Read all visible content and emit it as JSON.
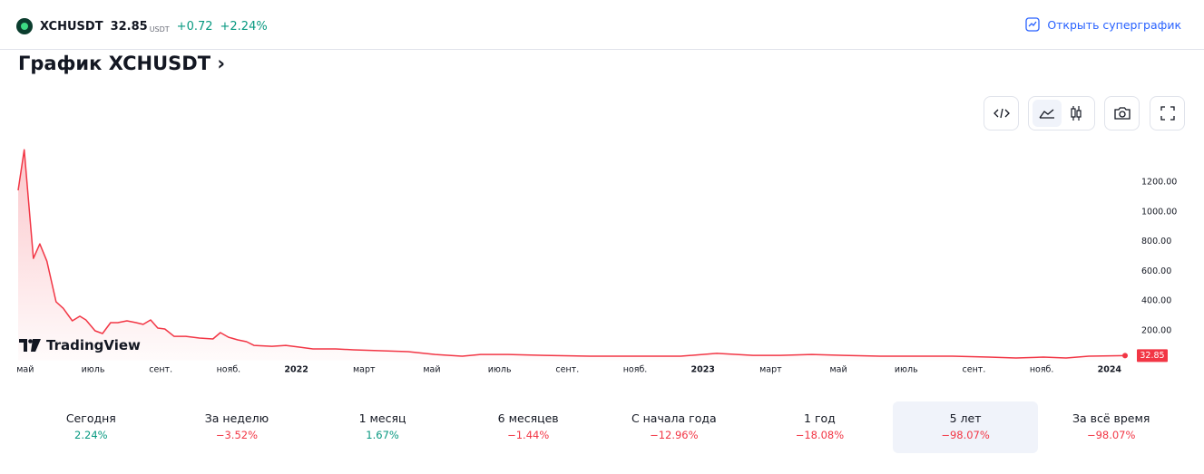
{
  "header": {
    "symbol": "XCHUSDT",
    "price": "32.85",
    "currency": "USDT",
    "change": "+0.72",
    "change_percent": "+2.24%",
    "superchart_button": "Открыть суперграфик"
  },
  "title": "График XCHUSDT",
  "watermark": "TradingView",
  "chart_data": {
    "type": "area",
    "color": "#f23645",
    "x": [
      -0.21,
      -0.03,
      0.24,
      0.43,
      0.64,
      0.91,
      1.12,
      1.39,
      1.61,
      1.79,
      2.06,
      2.28,
      2.52,
      2.73,
      3.0,
      3.27,
      3.48,
      3.7,
      3.91,
      4.12,
      4.39,
      4.74,
      5.14,
      5.54,
      5.76,
      6.0,
      6.27,
      6.53,
      6.75,
      7.28,
      7.69,
      8.09,
      8.49,
      9.16,
      9.69,
      10.5,
      11.3,
      12.1,
      12.9,
      13.44,
      14.25,
      15.32,
      16.66,
      18.0,
      19.34,
      20.41,
      21.48,
      22.28,
      23.22,
      24.16,
      25.23,
      26.3,
      27.37,
      28.44,
      29.24,
      30.05,
      30.72,
      31.39,
      32.46
    ],
    "values": [
      1145,
      1418,
      687,
      785,
      668,
      395,
      351,
      267,
      298,
      273,
      200,
      182,
      255,
      255,
      267,
      255,
      243,
      273,
      218,
      212,
      163,
      163,
      151,
      145,
      188,
      157,
      139,
      127,
      102,
      96,
      102,
      90,
      78,
      78,
      72,
      66,
      60,
      41,
      29,
      41,
      41,
      35,
      29,
      29,
      29,
      48,
      35,
      35,
      41,
      35,
      29,
      29,
      29,
      23,
      17,
      23,
      17,
      29,
      32.85
    ],
    "xlim": [
      -0.21,
      32.46
    ],
    "xticks": [
      {
        "value": 0,
        "label": "май"
      },
      {
        "value": 2,
        "label": "июль"
      },
      {
        "value": 4,
        "label": "сент."
      },
      {
        "value": 6,
        "label": "нояб."
      },
      {
        "value": 8,
        "label": "2022"
      },
      {
        "value": 10,
        "label": "март"
      },
      {
        "value": 12,
        "label": "май"
      },
      {
        "value": 14,
        "label": "июль"
      },
      {
        "value": 16,
        "label": "сент."
      },
      {
        "value": 18,
        "label": "нояб."
      },
      {
        "value": 20,
        "label": "2023"
      },
      {
        "value": 22,
        "label": "март"
      },
      {
        "value": 24,
        "label": "май"
      },
      {
        "value": 26,
        "label": "июль"
      },
      {
        "value": 28,
        "label": "сент."
      },
      {
        "value": 30,
        "label": "нояб."
      },
      {
        "value": 32,
        "label": "2024"
      }
    ],
    "ylim": [
      0,
      1500
    ],
    "yticks": [
      {
        "value": 200,
        "label": "200.00"
      },
      {
        "value": 400,
        "label": "400.00"
      },
      {
        "value": 600,
        "label": "600.00"
      },
      {
        "value": 800,
        "label": "800.00"
      },
      {
        "value": 1000,
        "label": "1000.00"
      },
      {
        "value": 1200,
        "label": "1200.00"
      }
    ],
    "grid": false
  },
  "periods": [
    {
      "label": "Сегодня",
      "value": "2.24%"
    },
    {
      "label": "За неделю",
      "value": "−3.52%"
    },
    {
      "label": "1 месяц",
      "value": "1.67%"
    },
    {
      "label": "6 месяцев",
      "value": "−1.44%"
    },
    {
      "label": "С начала года",
      "value": "−12.96%"
    },
    {
      "label": "1 год",
      "value": "−18.08%"
    },
    {
      "label": "5 лет",
      "value": "−98.07%"
    },
    {
      "label": "За всё время",
      "value": "−98.07%"
    }
  ]
}
